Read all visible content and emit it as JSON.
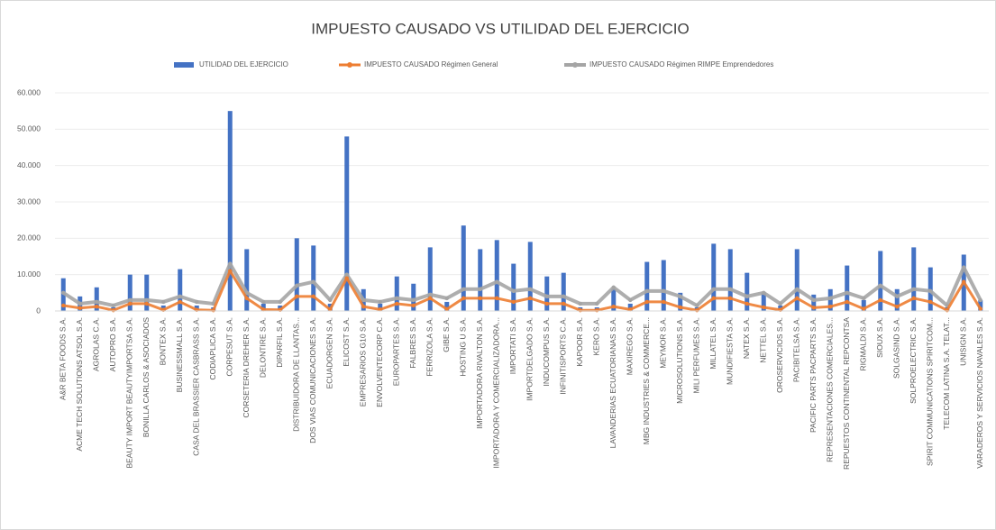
{
  "chart_data": {
    "type": "bar_line",
    "title": "IMPUESTO CAUSADO VS UTILIDAD DEL EJERCICIO",
    "categories": [
      "A&R BETA FOODS S.A.",
      "ACME TECH SOLUTIONS ATSOL S.A.",
      "AGROLAS C.A.",
      "AUTOPRO S.A.",
      "BEAUTY IMPORT BEAUTYIMPORTSA S.A.",
      "BONILLA CARLOS & ASOCIADOS",
      "BONTEX S.A.",
      "BUSINESSMALL S.A.",
      "CASA DEL BRASSIER CASBRASS S.A.",
      "CODIAPLICA S.A.",
      "CORPESUT S.A.",
      "CORSETERIA DREHER S.A.",
      "DELONTIRE S.A.",
      "DIPARFIL S.A.",
      "DISTRIBUIDORA DE LLANTAS...",
      "DOS VIAS COMUNICACIONES S.A.",
      "ECUADORGEN S.A.",
      "ELICOST S.A.",
      "EMPRESARIOS G10 S.A.",
      "ENVOLVENTECORP C.A.",
      "EUROPARTES S.A.",
      "FALBRES S.A.",
      "FERRIZOLA S.A.",
      "GIBE S.A.",
      "HOSTING U S.A.",
      "IMPORTADORA RIVALTON S.A.",
      "IMPORTADORA Y COMERCIALIZADORA...",
      "IMPORTATI S.A.",
      "IMPORTDELGADO S.A.",
      "INDUCOMPUS S.A.",
      "INFINITISPORTS C.A.",
      "KAPOOR S.A.",
      "KERO S.A.",
      "LAVANDERIAS ECUATORIANAS S.A.",
      "MAXIREGO S.A.",
      "MBG INDUSTRIES & COMMERCE...",
      "MEYMOR S.A.",
      "MICROSOLUTIONS S.A.",
      "MILI PERFUMES S.A.",
      "MILLATEL S.A.",
      "MUNDIFIESTA S.A.",
      "NATEX S.A.",
      "NETTEL S.A.",
      "OROSERVICIOS S.A.",
      "PACIBITELSA S.A.",
      "PACIFIC PARTS PACPARTS S.A.",
      "REPRESENTACIONES COMERCIALES...",
      "REPUESTOS CONTINENTAL REPCONTSA",
      "RIGMALDI S.A.",
      "SIOUX S.A.",
      "SOLGASIND S.A.",
      "SOLPROELECTRIC S.A.",
      "SPIRIT COMMUNICATIONS SPIRITCOM...",
      "TELECOM LATINA S.A. TELAT...",
      "UNISIGN S.A.",
      "VARADEROS Y SERVICIOS NAVALES S.A."
    ],
    "series": [
      {
        "name": "UTILIDAD DEL EJERCICIO",
        "type": "bar",
        "color": "#4472c4",
        "values": [
          9000,
          4000,
          6500,
          1000,
          10000,
          10000,
          1500,
          11500,
          1500,
          1000,
          55000,
          17000,
          2000,
          1500,
          20000,
          18000,
          2000,
          48000,
          6000,
          2000,
          9500,
          7500,
          17500,
          2500,
          23500,
          17000,
          19500,
          13000,
          19000,
          9500,
          10500,
          1000,
          1000,
          6000,
          2000,
          13500,
          14000,
          5000,
          1000,
          18500,
          17000,
          10500,
          5000,
          1500,
          17000,
          4500,
          6000,
          12500,
          3000,
          16500,
          6000,
          17500,
          12000,
          1000,
          15500,
          3000
        ]
      },
      {
        "name": "IMPUESTO CAUSADO Régimen General",
        "type": "line",
        "color": "#ed7d31",
        "values": [
          1500,
          800,
          1200,
          200,
          2000,
          2000,
          300,
          2500,
          300,
          200,
          11000,
          3500,
          400,
          300,
          4000,
          4000,
          400,
          9000,
          1200,
          400,
          2000,
          1500,
          3500,
          500,
          3500,
          3500,
          3500,
          2500,
          3500,
          2000,
          2000,
          200,
          200,
          1200,
          400,
          2500,
          2500,
          1000,
          200,
          3500,
          3500,
          2000,
          1000,
          300,
          3500,
          900,
          1200,
          2500,
          600,
          3000,
          1200,
          3500,
          2500,
          200,
          8000,
          600
        ]
      },
      {
        "name": "IMPUESTO CAUSADO Régimen RIMPE Emprendedores",
        "type": "line",
        "color": "#a5a5a5",
        "values": [
          5000,
          2000,
          2500,
          1500,
          3000,
          3000,
          2500,
          4000,
          2500,
          2000,
          13000,
          5000,
          2500,
          2500,
          7000,
          8000,
          3000,
          10000,
          3000,
          2500,
          3500,
          3000,
          4500,
          3500,
          6000,
          6000,
          8000,
          5500,
          6000,
          4000,
          4000,
          2000,
          2000,
          6500,
          3000,
          5500,
          5500,
          4000,
          1500,
          6000,
          6000,
          4000,
          5000,
          2000,
          6000,
          3000,
          3500,
          5000,
          3500,
          7000,
          4000,
          6000,
          5500,
          1500,
          12000,
          3000
        ]
      }
    ],
    "ylim": [
      0,
      60000
    ],
    "yticks": [
      0,
      {
        "value": 10000,
        "label": "10.000"
      },
      {
        "value": 20000,
        "label": "20.000"
      },
      {
        "value": 30000,
        "label": "30.000"
      },
      {
        "value": 40000,
        "label": "40.000"
      },
      {
        "value": 50000,
        "label": "50.000"
      },
      {
        "value": 60000,
        "label": "60.000"
      }
    ],
    "grid": true
  }
}
